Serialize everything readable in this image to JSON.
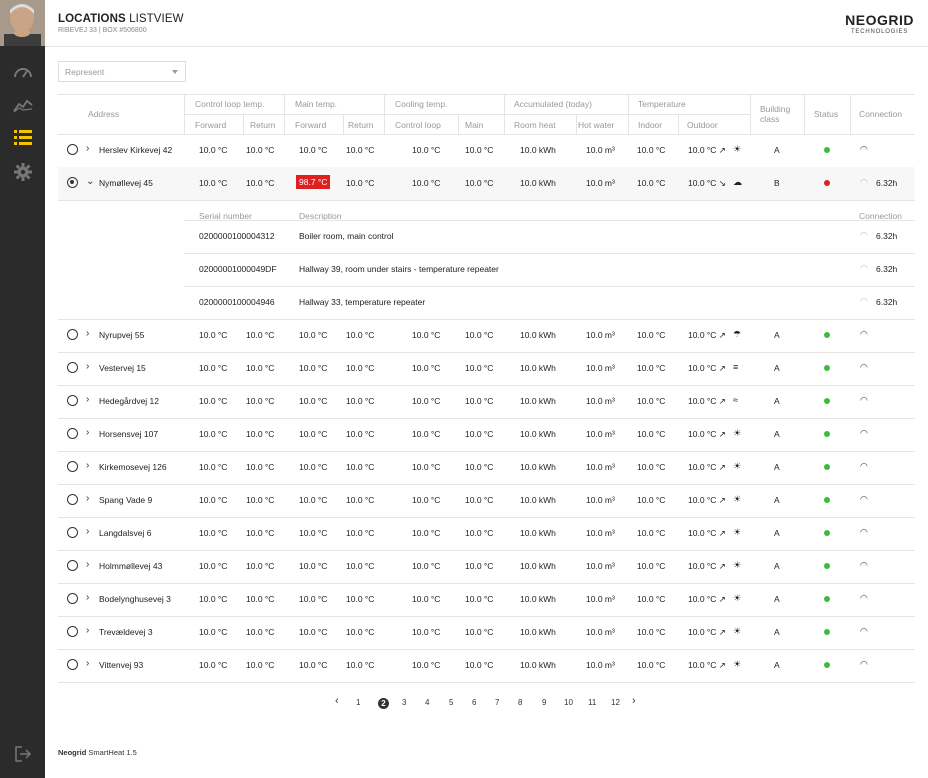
{
  "header": {
    "title_bold": "LOCATIONS",
    "title_rest": " LISTVIEW",
    "subtitle": "RIBEVEJ 33 | BOX #506800"
  },
  "logo": {
    "line1": "NEOGRID",
    "line2": "TECHNOLOGIES"
  },
  "filter": {
    "placeholder": "Represent"
  },
  "nav": [
    "speedometer-icon",
    "chart-line-icon",
    "list-icon",
    "gear-icon"
  ],
  "columns": {
    "address": "Address",
    "groups": [
      "Control loop temp.",
      "Main temp.",
      "Cooling temp.",
      "Accumulated (today)",
      "Temperature"
    ],
    "sub": [
      "Forward",
      "Return",
      "Forward",
      "Return",
      "Control loop",
      "Main",
      "Room heat",
      "Hot water",
      "Indoor",
      "Outdoor"
    ],
    "building_class": "Building class",
    "status": "Status",
    "connection": "Connection"
  },
  "rows": [
    {
      "address": "Herslev Kirkevej 42",
      "v": [
        "10.0 °C",
        "10.0 °C",
        "10.0 °C",
        "10.0 °C",
        "10.0 °C",
        "10.0 °C",
        "10.0 kWh",
        "10.0 m³",
        "10.0 °C",
        "10.0 °C ↗"
      ],
      "weather": "☀",
      "class": "A",
      "status": "green",
      "conn": ""
    },
    {
      "address": "Nymøllevej 45",
      "v": [
        "10.0 °C",
        "10.0 °C",
        "98.7 °C",
        "10.0 °C",
        "10.0 °C",
        "10.0 °C",
        "10.0 kWh",
        "10.0 m³",
        "10.0 °C",
        "10.0 °C ↘"
      ],
      "weather": "☁",
      "class": "B",
      "status": "red",
      "conn": "6.32h",
      "expanded": true,
      "selected": true,
      "alert": true
    },
    {
      "address": "Nyrupvej 55",
      "v": [
        "10.0 °C",
        "10.0 °C",
        "10.0 °C",
        "10.0 °C",
        "10.0 °C",
        "10.0 °C",
        "10.0 kWh",
        "10.0 m³",
        "10.0 °C",
        "10.0 °C ↗"
      ],
      "weather": "☂",
      "class": "A",
      "status": "green",
      "conn": ""
    },
    {
      "address": "Vestervej 15",
      "v": [
        "10.0 °C",
        "10.0 °C",
        "10.0 °C",
        "10.0 °C",
        "10.0 °C",
        "10.0 °C",
        "10.0 kWh",
        "10.0 m³",
        "10.0 °C",
        "10.0 °C ↗"
      ],
      "weather": "≡",
      "class": "A",
      "status": "green",
      "conn": ""
    },
    {
      "address": "Hedegårdvej 12",
      "v": [
        "10.0 °C",
        "10.0 °C",
        "10.0 °C",
        "10.0 °C",
        "10.0 °C",
        "10.0 °C",
        "10.0 kWh",
        "10.0 m³",
        "10.0 °C",
        "10.0 °C ↗"
      ],
      "weather": "≈",
      "class": "A",
      "status": "green",
      "conn": ""
    },
    {
      "address": "Horsensvej 107",
      "v": [
        "10.0 °C",
        "10.0 °C",
        "10.0 °C",
        "10.0 °C",
        "10.0 °C",
        "10.0 °C",
        "10.0 kWh",
        "10.0 m³",
        "10.0 °C",
        "10.0 °C ↗"
      ],
      "weather": "☀",
      "class": "A",
      "status": "green",
      "conn": ""
    },
    {
      "address": "Kirkemosevej 126",
      "v": [
        "10.0 °C",
        "10.0 °C",
        "10.0 °C",
        "10.0 °C",
        "10.0 °C",
        "10.0 °C",
        "10.0 kWh",
        "10.0 m³",
        "10.0 °C",
        "10.0 °C ↗"
      ],
      "weather": "☀",
      "class": "A",
      "status": "green",
      "conn": ""
    },
    {
      "address": "Spang Vade 9",
      "v": [
        "10.0 °C",
        "10.0 °C",
        "10.0 °C",
        "10.0 °C",
        "10.0 °C",
        "10.0 °C",
        "10.0 kWh",
        "10.0 m³",
        "10.0 °C",
        "10.0 °C ↗"
      ],
      "weather": "☀",
      "class": "A",
      "status": "green",
      "conn": ""
    },
    {
      "address": "Langdalsvej 6",
      "v": [
        "10.0 °C",
        "10.0 °C",
        "10.0 °C",
        "10.0 °C",
        "10.0 °C",
        "10.0 °C",
        "10.0 kWh",
        "10.0 m³",
        "10.0 °C",
        "10.0 °C ↗"
      ],
      "weather": "☀",
      "class": "A",
      "status": "green",
      "conn": ""
    },
    {
      "address": "Holmmøllevej 43",
      "v": [
        "10.0 °C",
        "10.0 °C",
        "10.0 °C",
        "10.0 °C",
        "10.0 °C",
        "10.0 °C",
        "10.0 kWh",
        "10.0 m³",
        "10.0 °C",
        "10.0 °C ↗"
      ],
      "weather": "☀",
      "class": "A",
      "status": "green",
      "conn": ""
    },
    {
      "address": "Bodelynghusevej 3",
      "v": [
        "10.0 °C",
        "10.0 °C",
        "10.0 °C",
        "10.0 °C",
        "10.0 °C",
        "10.0 °C",
        "10.0 kWh",
        "10.0 m³",
        "10.0 °C",
        "10.0 °C ↗"
      ],
      "weather": "☀",
      "class": "A",
      "status": "green",
      "conn": ""
    },
    {
      "address": "Trevældevej 3",
      "v": [
        "10.0 °C",
        "10.0 °C",
        "10.0 °C",
        "10.0 °C",
        "10.0 °C",
        "10.0 °C",
        "10.0 kWh",
        "10.0 m³",
        "10.0 °C",
        "10.0 °C ↗"
      ],
      "weather": "☀",
      "class": "A",
      "status": "green",
      "conn": ""
    },
    {
      "address": "Vittenvej 93",
      "v": [
        "10.0 °C",
        "10.0 °C",
        "10.0 °C",
        "10.0 °C",
        "10.0 °C",
        "10.0 °C",
        "10.0 kWh",
        "10.0 m³",
        "10.0 °C",
        "10.0 °C ↗"
      ],
      "weather": "☀",
      "class": "A",
      "status": "green",
      "conn": ""
    }
  ],
  "detail": {
    "headers": {
      "serial": "Serial number",
      "description": "Description",
      "connection": "Connection"
    },
    "items": [
      {
        "serial": "0200000100004312",
        "description": "Boiler room, main control",
        "conn": "6.32h"
      },
      {
        "serial": "02000001000049DF",
        "description": "Hallway 39, room under stairs - temperature repeater",
        "conn": "6.32h"
      },
      {
        "serial": "0200000100004946",
        "description": "Hallway 33, temperature repeater",
        "conn": "6.32h"
      }
    ]
  },
  "pagination": {
    "pages": [
      "1",
      "2",
      "3",
      "4",
      "5",
      "6",
      "7",
      "8",
      "9",
      "10",
      "11",
      "12"
    ],
    "active": "2",
    "prev": "‹",
    "next": "›"
  },
  "footer": {
    "brand": "Neogrid",
    "product": " SmartHeat 1.5"
  },
  "colors": {
    "sidebar": "#2b2b2b",
    "accent": "#f5c400",
    "status_green": "#3dbb3d",
    "status_red": "#e02020",
    "alert": "#e02020"
  }
}
